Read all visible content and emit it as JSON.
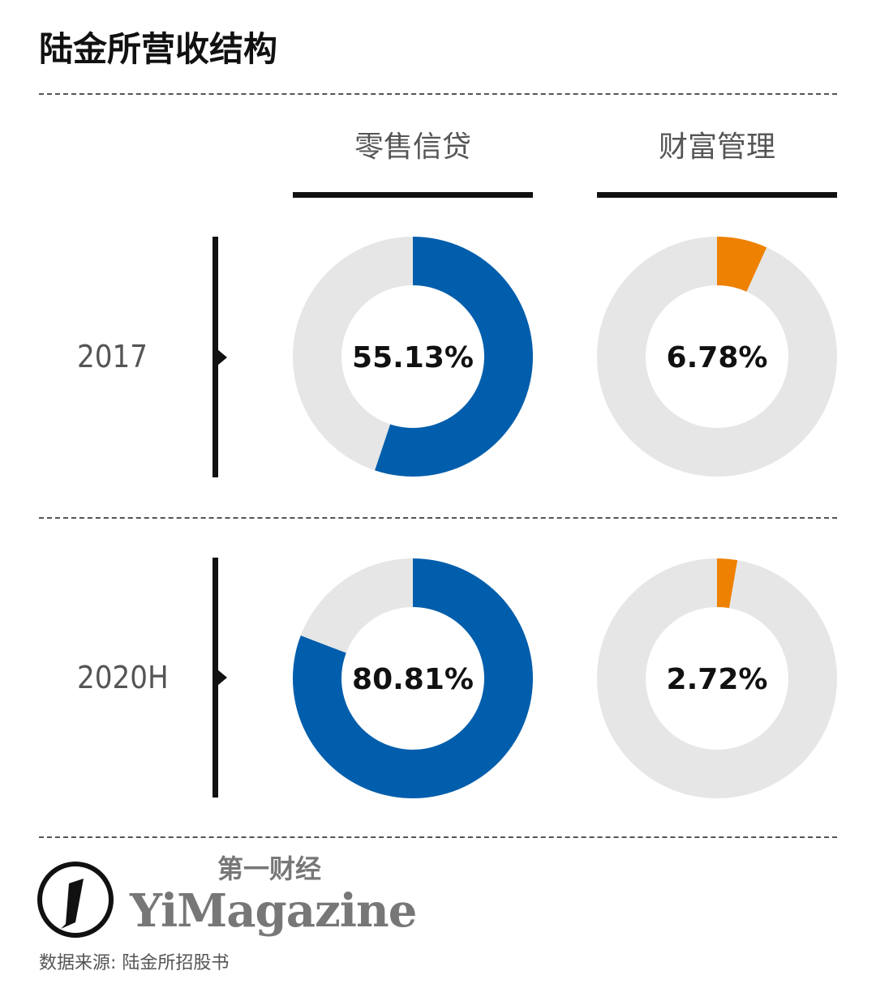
{
  "header": {
    "title": "陆金所营收结构"
  },
  "chart_data": {
    "type": "pie",
    "style": "donut",
    "title": "陆金所营收结构",
    "columns": [
      "零售信贷",
      "财富管理"
    ],
    "rows": [
      "2017",
      "2020H"
    ],
    "values": [
      [
        55.13,
        6.78
      ],
      [
        80.81,
        2.72
      ]
    ],
    "labels": [
      [
        "55.13%",
        "6.78%"
      ],
      [
        "80.81%",
        "2.72%"
      ]
    ],
    "colors": {
      "零售信贷": "#005eac",
      "财富管理": "#ee8100",
      "remainder": "#e6e6e6"
    }
  },
  "footer": {
    "logo_cn": "第一财经",
    "logo_en": "YiMagazine",
    "source": "数据来源: 陆金所招股书"
  }
}
